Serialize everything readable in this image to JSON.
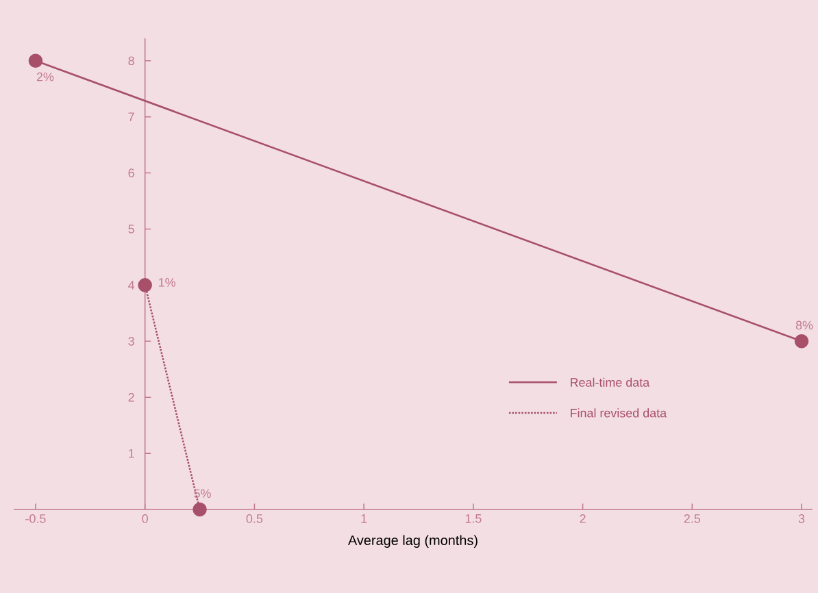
{
  "chart_data": {
    "type": "line",
    "xlabel": "Average lag (months)",
    "xlim": [
      -0.6,
      3.05
    ],
    "ylim": [
      0,
      8.4
    ],
    "xticks": [
      {
        "value": -0.5,
        "label": "-0.5"
      },
      0,
      0.5,
      1,
      1.5,
      2,
      2.5,
      3
    ],
    "yticks": [
      1,
      2,
      3,
      4,
      5,
      6,
      7,
      8
    ],
    "marker": "circle",
    "legend": "bottom right",
    "annotations": [
      {
        "text": "2%",
        "x": -0.5,
        "y": 8
      },
      {
        "text": "8%",
        "x": 3,
        "y": 3
      },
      {
        "text": "1%",
        "x": 0,
        "y": 4
      },
      {
        "text": "5%",
        "x": 0.25,
        "y": 0
      }
    ],
    "series": [
      {
        "name": "Real-time data",
        "color": "#a8506a",
        "line_style": "solid",
        "x": [
          -0.5,
          3
        ],
        "values": [
          8,
          3
        ]
      },
      {
        "name": "Final revised data",
        "color": "#a8506a",
        "line_style": "dotted",
        "x": [
          0,
          0.25
        ],
        "values": [
          4,
          0
        ]
      }
    ]
  }
}
